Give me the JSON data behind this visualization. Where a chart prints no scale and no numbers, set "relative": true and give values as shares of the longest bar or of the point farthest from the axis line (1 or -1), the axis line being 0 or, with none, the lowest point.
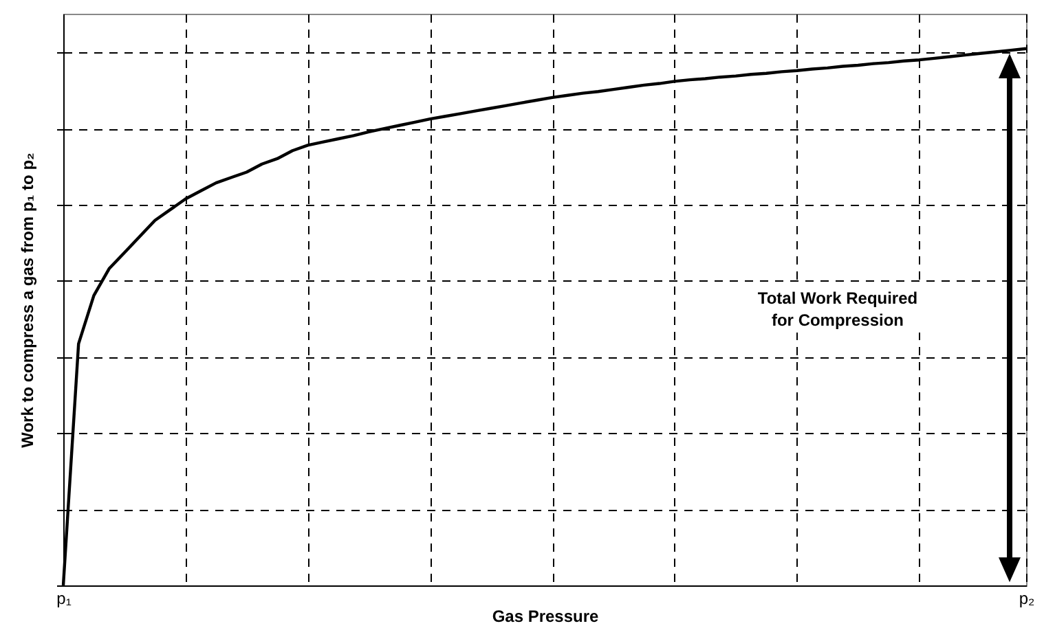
{
  "chart_data": {
    "type": "line",
    "xlabel": "Gas Pressure",
    "ylabel": "Work to compress a gas from p₁ to p₂",
    "relative": true,
    "categories": [
      "p₁",
      null,
      null,
      null,
      null,
      null,
      null,
      null,
      null,
      null,
      null,
      null,
      null,
      null,
      null,
      null,
      null,
      null,
      null,
      null,
      null,
      null,
      null,
      null,
      null,
      null,
      null,
      null,
      null,
      null,
      null,
      null,
      null,
      null,
      null,
      null,
      null,
      null,
      null,
      null,
      null,
      null,
      null,
      null,
      null,
      null,
      null,
      null,
      null,
      null,
      null,
      null,
      null,
      null,
      null,
      null,
      null,
      null,
      null,
      null,
      null,
      null,
      null,
      "p₂"
    ],
    "series": [
      {
        "color": "#000000",
        "values": [
          0,
          0.45,
          0.54,
          0.59,
          0.62,
          0.65,
          0.68,
          0.7,
          0.72,
          0.735,
          0.75,
          0.76,
          0.77,
          0.785,
          0.795,
          0.81,
          0.82,
          0.826,
          0.832,
          0.838,
          0.845,
          0.851,
          0.857,
          0.863,
          0.869,
          0.874,
          0.879,
          0.884,
          0.889,
          0.894,
          0.899,
          0.904,
          0.909,
          0.913,
          0.917,
          0.92,
          0.924,
          0.928,
          0.932,
          0.935,
          0.939,
          0.942,
          0.944,
          0.947,
          0.949,
          0.952,
          0.954,
          0.957,
          0.959,
          0.962,
          0.964,
          0.967,
          0.969,
          0.972,
          0.974,
          0.977,
          0.979,
          0.982,
          0.985,
          0.988,
          0.991,
          0.994,
          0.997,
          1.0
        ]
      }
    ],
    "grid": true,
    "annotations": [
      "Total Work Required\nfor Compression"
    ]
  }
}
